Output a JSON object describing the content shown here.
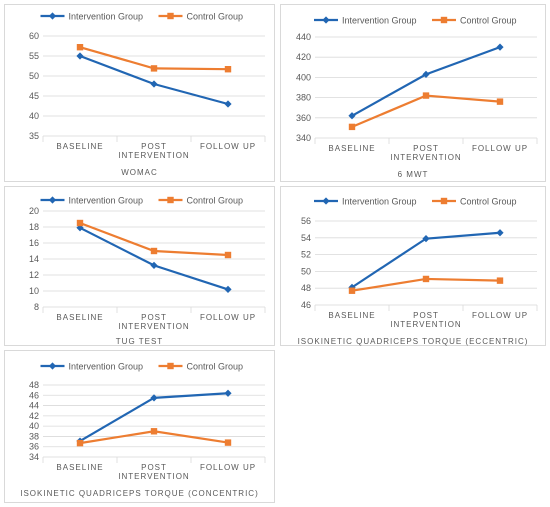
{
  "colors": {
    "intervention": "#2166b3",
    "control": "#ed7d31",
    "grid": "#d9d9d9",
    "text": "#595959"
  },
  "chart_data": [
    {
      "type": "line",
      "title": "WOMAC",
      "categories": [
        "BASELINE",
        "POST INTERVENTION",
        "FOLLOW UP"
      ],
      "series": [
        {
          "name": "Intervention Group",
          "values": [
            55,
            48,
            43
          ]
        },
        {
          "name": "Control Group",
          "values": [
            57.2,
            51.9,
            51.7
          ]
        }
      ],
      "ylim": [
        35,
        60
      ],
      "yticks": [
        35,
        40,
        45,
        50,
        55,
        60
      ],
      "grid": true,
      "legend": "top"
    },
    {
      "type": "line",
      "title": "6 MWT",
      "categories": [
        "BASELINE",
        "POST INTERVENTION",
        "FOLLOW UP"
      ],
      "series": [
        {
          "name": "Intervention Group",
          "values": [
            362,
            403,
            430
          ]
        },
        {
          "name": "Control Group",
          "values": [
            351,
            382,
            376
          ]
        }
      ],
      "ylim": [
        340,
        440
      ],
      "yticks": [
        340,
        360,
        380,
        400,
        420,
        440
      ],
      "grid": true,
      "legend": "top"
    },
    {
      "type": "line",
      "title": "TUG TEST",
      "categories": [
        "BASELINE",
        "POST INTERVENTION",
        "FOLLOW UP"
      ],
      "series": [
        {
          "name": "Intervention Group",
          "values": [
            17.9,
            13.2,
            10.2
          ]
        },
        {
          "name": "Control Group",
          "values": [
            18.5,
            15.0,
            14.5
          ]
        }
      ],
      "ylim": [
        8,
        20
      ],
      "yticks": [
        8,
        10,
        12,
        14,
        16,
        18,
        20
      ],
      "grid": true,
      "legend": "top"
    },
    {
      "type": "line",
      "title": "ISOKINETIC QUADRICEPS TORQUE (ECCENTRIC)",
      "categories": [
        "BASELINE",
        "POST INTERVENTION",
        "FOLLOW UP"
      ],
      "series": [
        {
          "name": "Intervention Group",
          "values": [
            48.1,
            53.9,
            54.6
          ]
        },
        {
          "name": "Control Group",
          "values": [
            47.7,
            49.1,
            48.9
          ]
        }
      ],
      "ylim": [
        46,
        56
      ],
      "yticks": [
        46,
        48,
        50,
        52,
        54,
        56
      ],
      "grid": true,
      "legend": "top"
    },
    {
      "type": "line",
      "title": "ISOKINETIC QUADRICEPS TORQUE (CONCENTRIC)",
      "categories": [
        "BASELINE",
        "POST INTERVENTION",
        "FOLLOW UP"
      ],
      "series": [
        {
          "name": "Intervention Group",
          "values": [
            37.1,
            45.5,
            46.4
          ]
        },
        {
          "name": "Control Group",
          "values": [
            36.7,
            39.0,
            36.8
          ]
        }
      ],
      "ylim": [
        34,
        48
      ],
      "yticks": [
        34,
        36,
        38,
        40,
        42,
        44,
        46,
        48
      ],
      "grid": true,
      "legend": "top"
    }
  ]
}
